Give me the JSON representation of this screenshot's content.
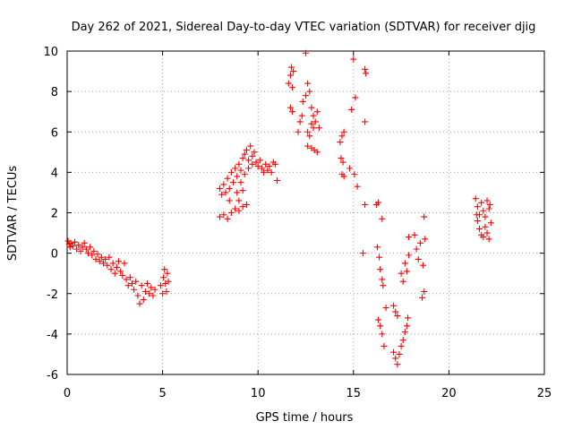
{
  "chart_data": {
    "type": "scatter",
    "title": "Day 262 of 2021, Sidereal Day-to-day VTEC variation (SDTVAR) for receiver djig",
    "xlabel": "GPS time / hours",
    "ylabel": "SDTVAR / TECUs",
    "xlim": [
      0,
      25
    ],
    "ylim": [
      -6,
      10
    ],
    "xticks": [
      0,
      5,
      10,
      15,
      20,
      25
    ],
    "yticks": [
      -6,
      -4,
      -2,
      0,
      2,
      4,
      6,
      8,
      10
    ],
    "grid": true,
    "marker": "+",
    "marker_color": "#ff0000",
    "series": [
      {
        "name": "SDTVAR",
        "points": [
          [
            0.05,
            0.6
          ],
          [
            0.1,
            0.45
          ],
          [
            0.15,
            0.3
          ],
          [
            0.2,
            0.5
          ],
          [
            0.3,
            0.35
          ],
          [
            0.4,
            0.55
          ],
          [
            0.5,
            0.2
          ],
          [
            0.6,
            0.4
          ],
          [
            0.7,
            0.1
          ],
          [
            0.8,
            0.3
          ],
          [
            0.9,
            0.5
          ],
          [
            1.0,
            0.2
          ],
          [
            1.1,
            0.0
          ],
          [
            1.2,
            0.3
          ],
          [
            1.3,
            -0.1
          ],
          [
            1.4,
            0.1
          ],
          [
            1.5,
            -0.3
          ],
          [
            1.6,
            -0.05
          ],
          [
            1.7,
            -0.4
          ],
          [
            1.8,
            -0.2
          ],
          [
            1.9,
            -0.5
          ],
          [
            2.0,
            -0.3
          ],
          [
            2.1,
            -0.6
          ],
          [
            2.2,
            -0.2
          ],
          [
            2.3,
            -0.8
          ],
          [
            2.4,
            -0.5
          ],
          [
            2.5,
            -1.0
          ],
          [
            2.6,
            -0.7
          ],
          [
            2.7,
            -0.4
          ],
          [
            2.8,
            -0.9
          ],
          [
            2.9,
            -1.1
          ],
          [
            3.0,
            -0.5
          ],
          [
            3.1,
            -1.3
          ],
          [
            3.2,
            -1.6
          ],
          [
            3.3,
            -1.2
          ],
          [
            3.4,
            -1.5
          ],
          [
            3.5,
            -1.8
          ],
          [
            3.6,
            -1.4
          ],
          [
            3.7,
            -2.1
          ],
          [
            3.8,
            -2.5
          ],
          [
            3.9,
            -1.6
          ],
          [
            4.0,
            -2.3
          ],
          [
            4.1,
            -1.9
          ],
          [
            4.2,
            -1.5
          ],
          [
            4.3,
            -2.0
          ],
          [
            4.4,
            -1.7
          ],
          [
            4.5,
            -2.1
          ],
          [
            4.6,
            -1.8
          ],
          [
            4.9,
            -1.6
          ],
          [
            5.0,
            -2.0
          ],
          [
            5.05,
            -1.2
          ],
          [
            5.1,
            -0.8
          ],
          [
            5.15,
            -1.5
          ],
          [
            5.2,
            -1.9
          ],
          [
            5.25,
            -1.0
          ],
          [
            5.3,
            -1.4
          ],
          [
            8.0,
            3.2
          ],
          [
            8.1,
            2.9
          ],
          [
            8.2,
            3.4
          ],
          [
            8.3,
            3.0
          ],
          [
            8.4,
            3.7
          ],
          [
            8.5,
            3.2
          ],
          [
            8.6,
            4.0
          ],
          [
            8.7,
            3.5
          ],
          [
            8.8,
            4.2
          ],
          [
            8.9,
            3.8
          ],
          [
            9.0,
            4.4
          ],
          [
            9.1,
            4.1
          ],
          [
            9.2,
            4.7
          ],
          [
            9.3,
            4.9
          ],
          [
            9.4,
            5.1
          ],
          [
            9.5,
            4.6
          ],
          [
            9.6,
            5.3
          ],
          [
            9.7,
            4.8
          ],
          [
            9.8,
            5.0
          ],
          [
            9.9,
            4.5
          ],
          [
            10.0,
            4.3
          ],
          [
            10.1,
            4.6
          ],
          [
            10.2,
            4.2
          ],
          [
            10.3,
            4.0
          ],
          [
            10.4,
            4.4
          ],
          [
            10.5,
            4.1
          ],
          [
            10.6,
            4.3
          ],
          [
            10.7,
            4.0
          ],
          [
            10.8,
            4.5
          ],
          [
            10.9,
            4.4
          ],
          [
            8.0,
            1.8
          ],
          [
            8.2,
            1.9
          ],
          [
            8.4,
            1.7
          ],
          [
            8.6,
            2.0
          ],
          [
            8.8,
            2.2
          ],
          [
            9.0,
            2.1
          ],
          [
            9.2,
            2.3
          ],
          [
            9.4,
            2.4
          ],
          [
            8.5,
            2.6
          ],
          [
            8.9,
            3.0
          ],
          [
            9.1,
            3.5
          ],
          [
            9.3,
            3.9
          ],
          [
            9.5,
            4.2
          ],
          [
            9.7,
            4.4
          ],
          [
            9.0,
            2.6
          ],
          [
            9.2,
            3.1
          ],
          [
            11.0,
            3.6
          ],
          [
            11.6,
            8.4
          ],
          [
            11.7,
            8.8
          ],
          [
            11.75,
            9.2
          ],
          [
            11.8,
            8.2
          ],
          [
            11.85,
            9.0
          ],
          [
            11.7,
            7.2
          ],
          [
            11.8,
            7.0
          ],
          [
            12.1,
            6.0
          ],
          [
            12.2,
            6.5
          ],
          [
            12.3,
            6.8
          ],
          [
            12.35,
            7.5
          ],
          [
            12.5,
            7.8
          ],
          [
            12.6,
            8.4
          ],
          [
            12.7,
            8.0
          ],
          [
            12.8,
            7.2
          ],
          [
            12.9,
            6.8
          ],
          [
            12.6,
            6.0
          ],
          [
            12.7,
            5.8
          ],
          [
            12.8,
            6.4
          ],
          [
            12.9,
            6.2
          ],
          [
            13.0,
            6.5
          ],
          [
            13.1,
            7.0
          ],
          [
            13.2,
            6.2
          ],
          [
            12.5,
            9.9
          ],
          [
            12.6,
            5.3
          ],
          [
            12.8,
            5.2
          ],
          [
            12.95,
            5.1
          ],
          [
            13.1,
            5.0
          ],
          [
            14.4,
            5.8
          ],
          [
            14.5,
            6.0
          ],
          [
            14.3,
            5.5
          ],
          [
            14.35,
            4.7
          ],
          [
            14.45,
            4.5
          ],
          [
            14.4,
            3.9
          ],
          [
            14.5,
            3.8
          ],
          [
            14.8,
            4.2
          ],
          [
            14.9,
            7.1
          ],
          [
            15.1,
            7.7
          ],
          [
            15.0,
            9.6
          ],
          [
            15.6,
            9.1
          ],
          [
            15.65,
            8.9
          ],
          [
            15.6,
            6.5
          ],
          [
            15.6,
            2.4
          ],
          [
            15.5,
            0.0
          ],
          [
            15.05,
            3.9
          ],
          [
            15.2,
            3.3
          ],
          [
            16.2,
            2.4
          ],
          [
            16.3,
            2.5
          ],
          [
            16.5,
            1.7
          ],
          [
            16.25,
            0.3
          ],
          [
            16.35,
            -0.2
          ],
          [
            16.4,
            -0.8
          ],
          [
            16.5,
            -1.3
          ],
          [
            16.55,
            -1.6
          ],
          [
            16.3,
            -3.3
          ],
          [
            16.4,
            -3.6
          ],
          [
            16.5,
            -4.0
          ],
          [
            16.6,
            -4.6
          ],
          [
            16.7,
            -2.7
          ],
          [
            17.1,
            -2.6
          ],
          [
            17.2,
            -2.9
          ],
          [
            17.1,
            -4.9
          ],
          [
            17.2,
            -5.2
          ],
          [
            17.3,
            -5.5
          ],
          [
            17.4,
            -5.0
          ],
          [
            17.5,
            -4.6
          ],
          [
            17.6,
            -4.3
          ],
          [
            17.7,
            -3.9
          ],
          [
            17.8,
            -3.6
          ],
          [
            17.85,
            -3.2
          ],
          [
            17.5,
            -1.0
          ],
          [
            17.6,
            -1.4
          ],
          [
            17.7,
            -0.5
          ],
          [
            17.8,
            -0.9
          ],
          [
            17.9,
            -0.1
          ],
          [
            17.3,
            -3.1
          ],
          [
            17.9,
            0.8
          ],
          [
            18.2,
            0.9
          ],
          [
            18.3,
            0.2
          ],
          [
            18.4,
            -0.3
          ],
          [
            18.5,
            0.5
          ],
          [
            18.7,
            1.8
          ],
          [
            18.65,
            -0.6
          ],
          [
            18.7,
            -1.9
          ],
          [
            18.6,
            -2.2
          ],
          [
            18.75,
            0.7
          ],
          [
            21.4,
            2.7
          ],
          [
            21.5,
            2.3
          ],
          [
            21.6,
            1.9
          ],
          [
            21.7,
            2.5
          ],
          [
            21.8,
            2.1
          ],
          [
            21.9,
            1.8
          ],
          [
            22.0,
            2.6
          ],
          [
            22.1,
            2.2
          ],
          [
            21.5,
            1.6
          ],
          [
            21.6,
            1.2
          ],
          [
            21.7,
            0.9
          ],
          [
            21.8,
            0.8
          ],
          [
            21.9,
            1.3
          ],
          [
            22.0,
            1.0
          ],
          [
            22.1,
            0.7
          ],
          [
            22.2,
            1.5
          ],
          [
            21.45,
            1.9
          ],
          [
            22.15,
            2.4
          ]
        ]
      }
    ]
  }
}
